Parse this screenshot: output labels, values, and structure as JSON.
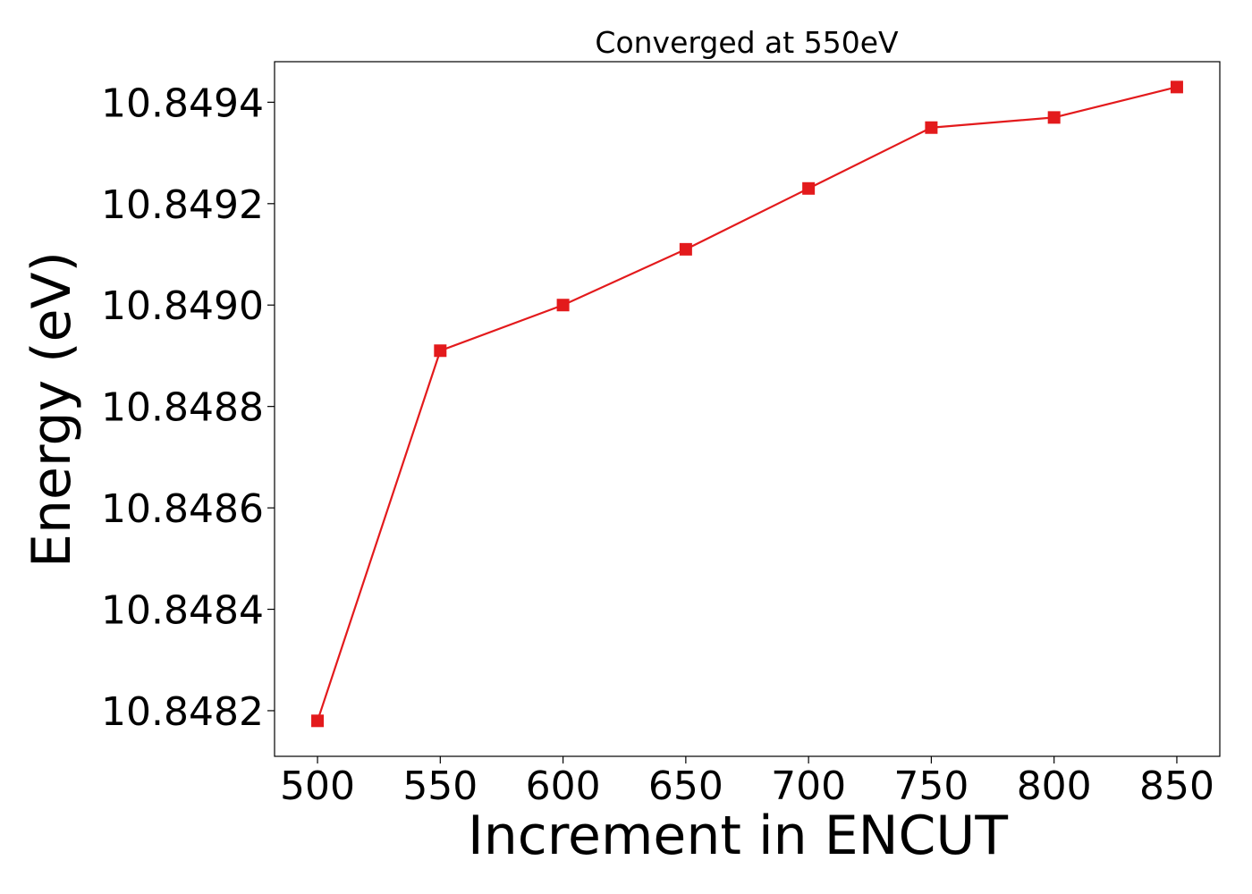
{
  "chart_data": {
    "type": "line",
    "title": "Converged at 550eV",
    "xlabel": "Increment in ENCUT",
    "ylabel": "Energy (eV)",
    "x": [
      500,
      550,
      600,
      650,
      700,
      750,
      800,
      850
    ],
    "series": [
      {
        "values": [
          10.84818,
          10.84891,
          10.849,
          10.84911,
          10.84923,
          10.84935,
          10.84937,
          10.84943
        ],
        "color": "#e31a1c",
        "marker": "square"
      }
    ],
    "xticks": [
      "500",
      "550",
      "600",
      "650",
      "700",
      "750",
      "800",
      "850"
    ],
    "yticks": [
      "10.8482",
      "10.8484",
      "10.8486",
      "10.8488",
      "10.8490",
      "10.8492",
      "10.8494"
    ],
    "xlim": [
      482.5,
      867.5
    ],
    "ylim": [
      10.84811,
      10.84948
    ],
    "grid": false,
    "legend": "none"
  }
}
